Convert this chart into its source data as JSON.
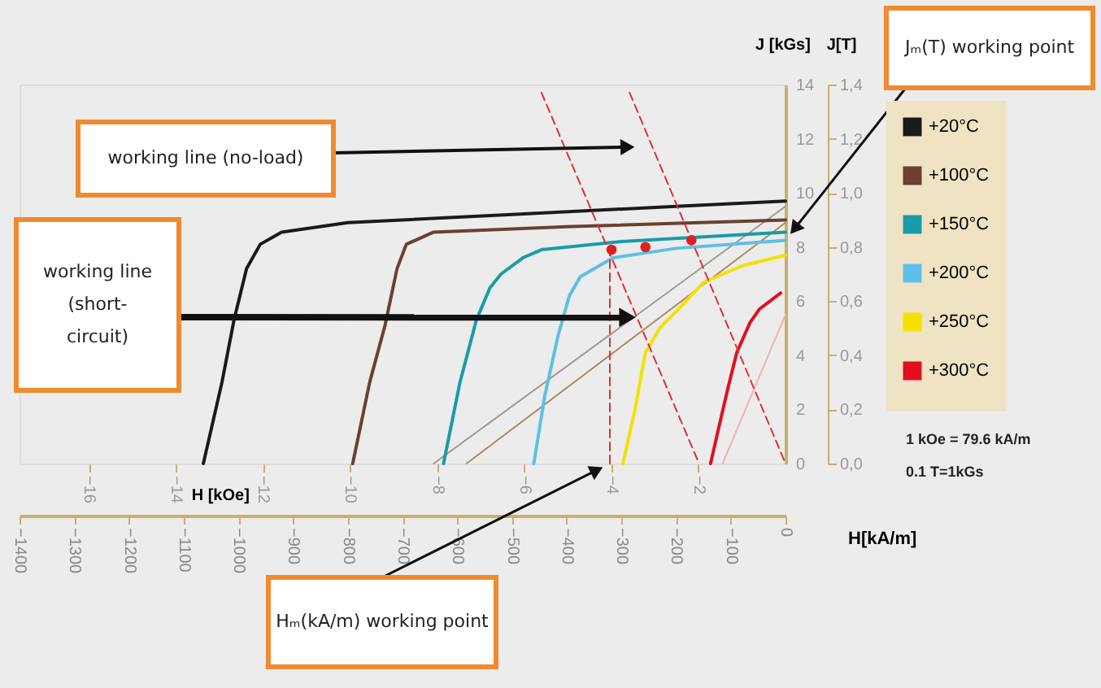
{
  "chart_data": {
    "type": "line",
    "xlabel": "H[kA/m]",
    "x2label": "H [kOe]",
    "ylabel": "J [kGs]",
    "y2label": "J[T]",
    "xlim": [
      -1400,
      0
    ],
    "xticks": [
      -1400,
      -1300,
      -1200,
      -1100,
      -1000,
      -900,
      -800,
      -700,
      -600,
      -500,
      -400,
      -300,
      -200,
      -100,
      0
    ],
    "x2lim": [
      -17.59,
      0
    ],
    "x2ticks": [
      -16,
      -14,
      -12,
      -10,
      -8,
      -6,
      -4,
      -2
    ],
    "ylim": [
      0,
      14
    ],
    "yticks": [
      0,
      2,
      4,
      6,
      8,
      10,
      12,
      14
    ],
    "y2lim": [
      0,
      1.4
    ],
    "y2ticks": [
      {
        "value": 0,
        "label": "0,0"
      },
      {
        "value": 0.2,
        "label": "0,2"
      },
      {
        "value": 0.4,
        "label": "0,4"
      },
      {
        "value": 0.6,
        "label": "0,6"
      },
      {
        "value": 0.8,
        "label": "0,8"
      },
      {
        "value": 1.0,
        "label": "1,0"
      },
      {
        "value": 1.2,
        "label": "1,2"
      },
      {
        "value": 1.4,
        "label": "1,4"
      }
    ],
    "legend": "right",
    "series": [
      {
        "type": "line",
        "color": "#a09890",
        "x": [
          -643,
          0
        ],
        "values": [
          0,
          9.5
        ]
      },
      {
        "type": "line",
        "color": "#b08860",
        "x": [
          -583,
          0
        ],
        "values": [
          0,
          8.9
        ]
      },
      {
        "type": "line",
        "color": "#f0b0b0",
        "x": [
          -115,
          0
        ],
        "values": [
          0,
          5.5
        ]
      },
      {
        "name": "+20°C",
        "color": "#1a1a1a",
        "x": [
          -1064,
          -1030,
          -1008,
          -985,
          -960,
          -921,
          -800,
          -500,
          -200,
          0
        ],
        "values": [
          0,
          3,
          5.3,
          7.2,
          8.1,
          8.55,
          8.9,
          9.2,
          9.5,
          9.7
        ]
      },
      {
        "name": "+100°C",
        "color": "#6b4030",
        "x": [
          -791,
          -760,
          -732,
          -710,
          -693,
          -643,
          -400,
          0
        ],
        "values": [
          0,
          3,
          5.1,
          7.2,
          8.1,
          8.55,
          8.75,
          9.0
        ]
      },
      {
        "name": "+150°C",
        "color": "#1a9ba8",
        "x": [
          -625,
          -595,
          -565,
          -540,
          -520,
          -480,
          -446,
          -300,
          0
        ],
        "values": [
          0,
          3,
          5.3,
          6.5,
          7.0,
          7.6,
          7.9,
          8.2,
          8.55
        ]
      },
      {
        "name": "+200°C",
        "color": "#5cc0e8",
        "x": [
          -460,
          -440,
          -416,
          -395,
          -375,
          -315,
          -200,
          0
        ],
        "values": [
          0,
          2.5,
          4.7,
          6.2,
          6.9,
          7.6,
          7.95,
          8.25
        ]
      },
      {
        "name": "+250°C",
        "color": "#f5e000",
        "x": [
          -297,
          -275,
          -256,
          -230,
          -196,
          -149,
          -80,
          0
        ],
        "values": [
          0,
          2,
          4.1,
          5.0,
          5.7,
          6.7,
          7.3,
          7.7
        ]
      },
      {
        "name": "+300°C",
        "color": "#e01020",
        "x": [
          -137,
          -120,
          -105,
          -89,
          -65,
          -48,
          -9
        ],
        "values": [
          0,
          1.5,
          2.8,
          4.1,
          5.2,
          5.7,
          6.3
        ]
      },
      {
        "type": "line",
        "color": "#e03030",
        "line_style": "dashed",
        "x": [
          -446,
          -158
        ],
        "values": [
          13.7,
          0
        ]
      },
      {
        "type": "line",
        "color": "#e03030",
        "line_style": "dashed",
        "x": [
          -285,
          0
        ],
        "values": [
          13.7,
          0
        ]
      },
      {
        "type": "line",
        "color": "#e03030",
        "line_style": "dashed",
        "x": [
          -321,
          -321
        ],
        "values": [
          0,
          7.9
        ]
      },
      {
        "type": "scatter",
        "color": "#e02020",
        "marker": "circle",
        "x": [
          -318,
          -256,
          -172
        ],
        "values": [
          7.9,
          8.0,
          8.25
        ]
      }
    ],
    "annotations": [
      "working line (no-load)",
      "working line\n(short-\ncircuit)",
      "Jₘ(T) working point",
      "Hₘ(kA/m) working point",
      "1 kOe = 79.6 kA/m",
      "0.1 T=1kGs"
    ]
  }
}
